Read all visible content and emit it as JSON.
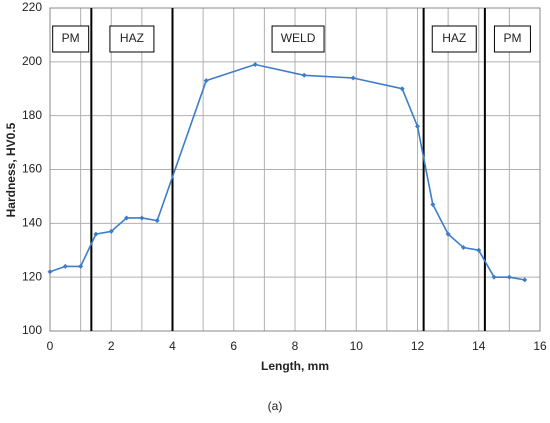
{
  "chart_data": {
    "type": "line",
    "x_label": "Length, mm",
    "y_label": "Hardness, HV0.5",
    "caption": "(a)",
    "x": [
      0,
      0.5,
      1,
      1.5,
      2,
      2.5,
      3,
      3.5,
      5.1,
      6.7,
      8.3,
      9.9,
      11.5,
      12,
      12.5,
      13,
      13.5,
      14,
      14.5,
      15,
      15.5
    ],
    "series": [
      {
        "name": "Hardness",
        "color": "#3d7cc9",
        "values": [
          122,
          124,
          124,
          136,
          137,
          142,
          142,
          141,
          193,
          199,
          195,
          194,
          190,
          176,
          147,
          136,
          131,
          130,
          120,
          120,
          119
        ]
      }
    ],
    "xlim": [
      0,
      16
    ],
    "xticks": [
      0,
      2,
      4,
      6,
      8,
      10,
      12,
      14,
      16
    ],
    "ylim": [
      100,
      220
    ],
    "yticks": [
      100,
      120,
      140,
      160,
      180,
      200,
      220
    ],
    "grid": true,
    "zone_boundaries": [
      1.35,
      4,
      12.2,
      14.2
    ],
    "zones": [
      "PM",
      "HAZ",
      "WELD",
      "HAZ",
      "PM"
    ]
  }
}
